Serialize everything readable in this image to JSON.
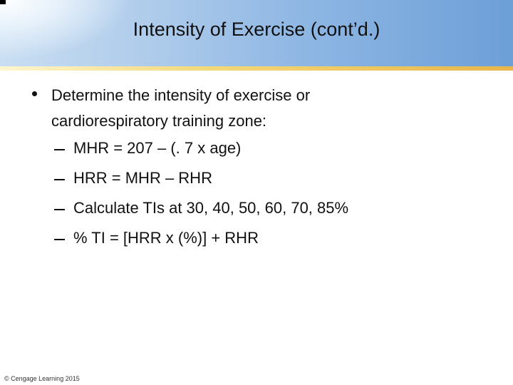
{
  "header": {
    "title": "Intensity of Exercise (cont’d.)"
  },
  "bullets": [
    {
      "text": "Determine the intensity of exercise or cardiorespiratory training zone:",
      "sub_bullets": [
        "MHR = 207 – (. 7 x age)",
        "HRR = MHR – RHR",
        "Calculate TIs at 30, 40, 50, 60, 70, 85%",
        "% TI = [HRR x (%)] + RHR"
      ]
    }
  ],
  "footer": {
    "copyright": "© Cengage Learning 2015"
  }
}
